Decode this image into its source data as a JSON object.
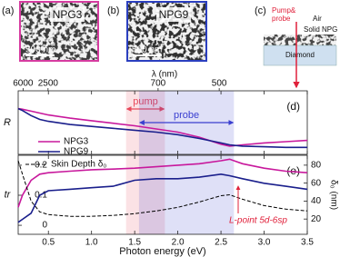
{
  "images": [
    {
      "label": "(a)",
      "name": "NPG3",
      "scale": "500 nm"
    },
    {
      "label": "(b)",
      "name": "NPG9",
      "scale": "500 nm"
    }
  ],
  "schematic": {
    "label": "(c)",
    "beam": [
      "Pump&",
      "probe"
    ],
    "layers": [
      "Air",
      "Solid NPG",
      "Diamond"
    ]
  },
  "chart_data": [
    {
      "type": "line",
      "panel_label": "(d)",
      "ylabel": "R",
      "ylim": [
        0,
        1
      ],
      "xlim": [
        0.15,
        3.5
      ],
      "top_axis": {
        "label": "λ (nm)",
        "ticks": [
          6000,
          2500,
          700,
          500
        ]
      },
      "x": [
        0.15,
        0.2,
        0.3,
        0.4,
        0.5,
        0.75,
        1,
        1.25,
        1.5,
        1.75,
        2,
        2.25,
        2.5,
        2.6,
        2.75,
        3,
        3.25,
        3.5
      ],
      "series": [
        {
          "name": "NPG3",
          "color": "#c8189c",
          "values": [
            0.72,
            0.71,
            0.68,
            0.65,
            0.62,
            0.57,
            0.53,
            0.49,
            0.45,
            0.4,
            0.35,
            0.27,
            0.16,
            0.13,
            0.15,
            0.18,
            0.2,
            0.22
          ]
        },
        {
          "name": "NPG9",
          "color": "#1a1f8c",
          "values": [
            0.72,
            0.69,
            0.61,
            0.55,
            0.52,
            0.47,
            0.44,
            0.41,
            0.38,
            0.35,
            0.31,
            0.25,
            0.18,
            0.15,
            0.13,
            0.12,
            0.11,
            0.11
          ]
        }
      ],
      "bands": [
        {
          "name": "pump",
          "range": [
            1.4,
            1.85
          ],
          "color": "#e8495b"
        },
        {
          "name": "probe",
          "range": [
            1.55,
            2.65
          ],
          "color": "#3a3fd0"
        }
      ],
      "legend": "lower left"
    },
    {
      "type": "line",
      "panel_label": "(e)",
      "ylabel": "tr",
      "y2label": "δ₀ (nm)",
      "xlabel": "Photon energy (eV)",
      "xlim": [
        0.15,
        3.5
      ],
      "xticks": [
        0.5,
        {
          "value": 1,
          "label": "1.0"
        },
        1.5,
        {
          "value": 2,
          "label": "2.0"
        },
        2.5,
        {
          "value": 3,
          "label": "3.0"
        },
        3.5
      ],
      "ylim": [
        -0.03,
        0.233
      ],
      "yticks": [
        0,
        0.1,
        0.2
      ],
      "y2lim": [
        3,
        91
      ],
      "y2ticks": [
        20,
        40,
        60,
        80
      ],
      "x": [
        0.15,
        0.2,
        0.3,
        0.4,
        0.5,
        0.75,
        1,
        1.25,
        1.5,
        1.75,
        2,
        2.25,
        2.5,
        2.6,
        2.75,
        3,
        3.25,
        3.5
      ],
      "series": [
        {
          "name": "NPG3",
          "color": "#c8189c",
          "values": [
            0.06,
            0.1,
            0.15,
            0.17,
            0.175,
            0.18,
            0.185,
            0.187,
            0.19,
            0.195,
            0.2,
            0.205,
            0.215,
            0.22,
            0.205,
            0.19,
            0.18,
            0.175
          ]
        },
        {
          "name": "NPG9",
          "color": "#1a1f8c",
          "values": [
            0.01,
            0.02,
            0.04,
            0.1,
            0.115,
            0.12,
            0.125,
            0.13,
            0.15,
            0.155,
            0.155,
            0.16,
            0.17,
            0.165,
            0.155,
            0.14,
            0.13,
            0.12
          ]
        },
        {
          "name": "Skin Depth δ₀",
          "color": "#000000",
          "dash": true,
          "axis": "y2",
          "values": [
            85,
            70,
            40,
            28,
            25,
            23,
            23,
            24,
            26,
            29,
            33,
            39,
            46,
            47,
            42,
            35,
            31,
            29
          ]
        }
      ],
      "annotation": "L-point 5d-6sp",
      "legend": "upper left"
    }
  ]
}
